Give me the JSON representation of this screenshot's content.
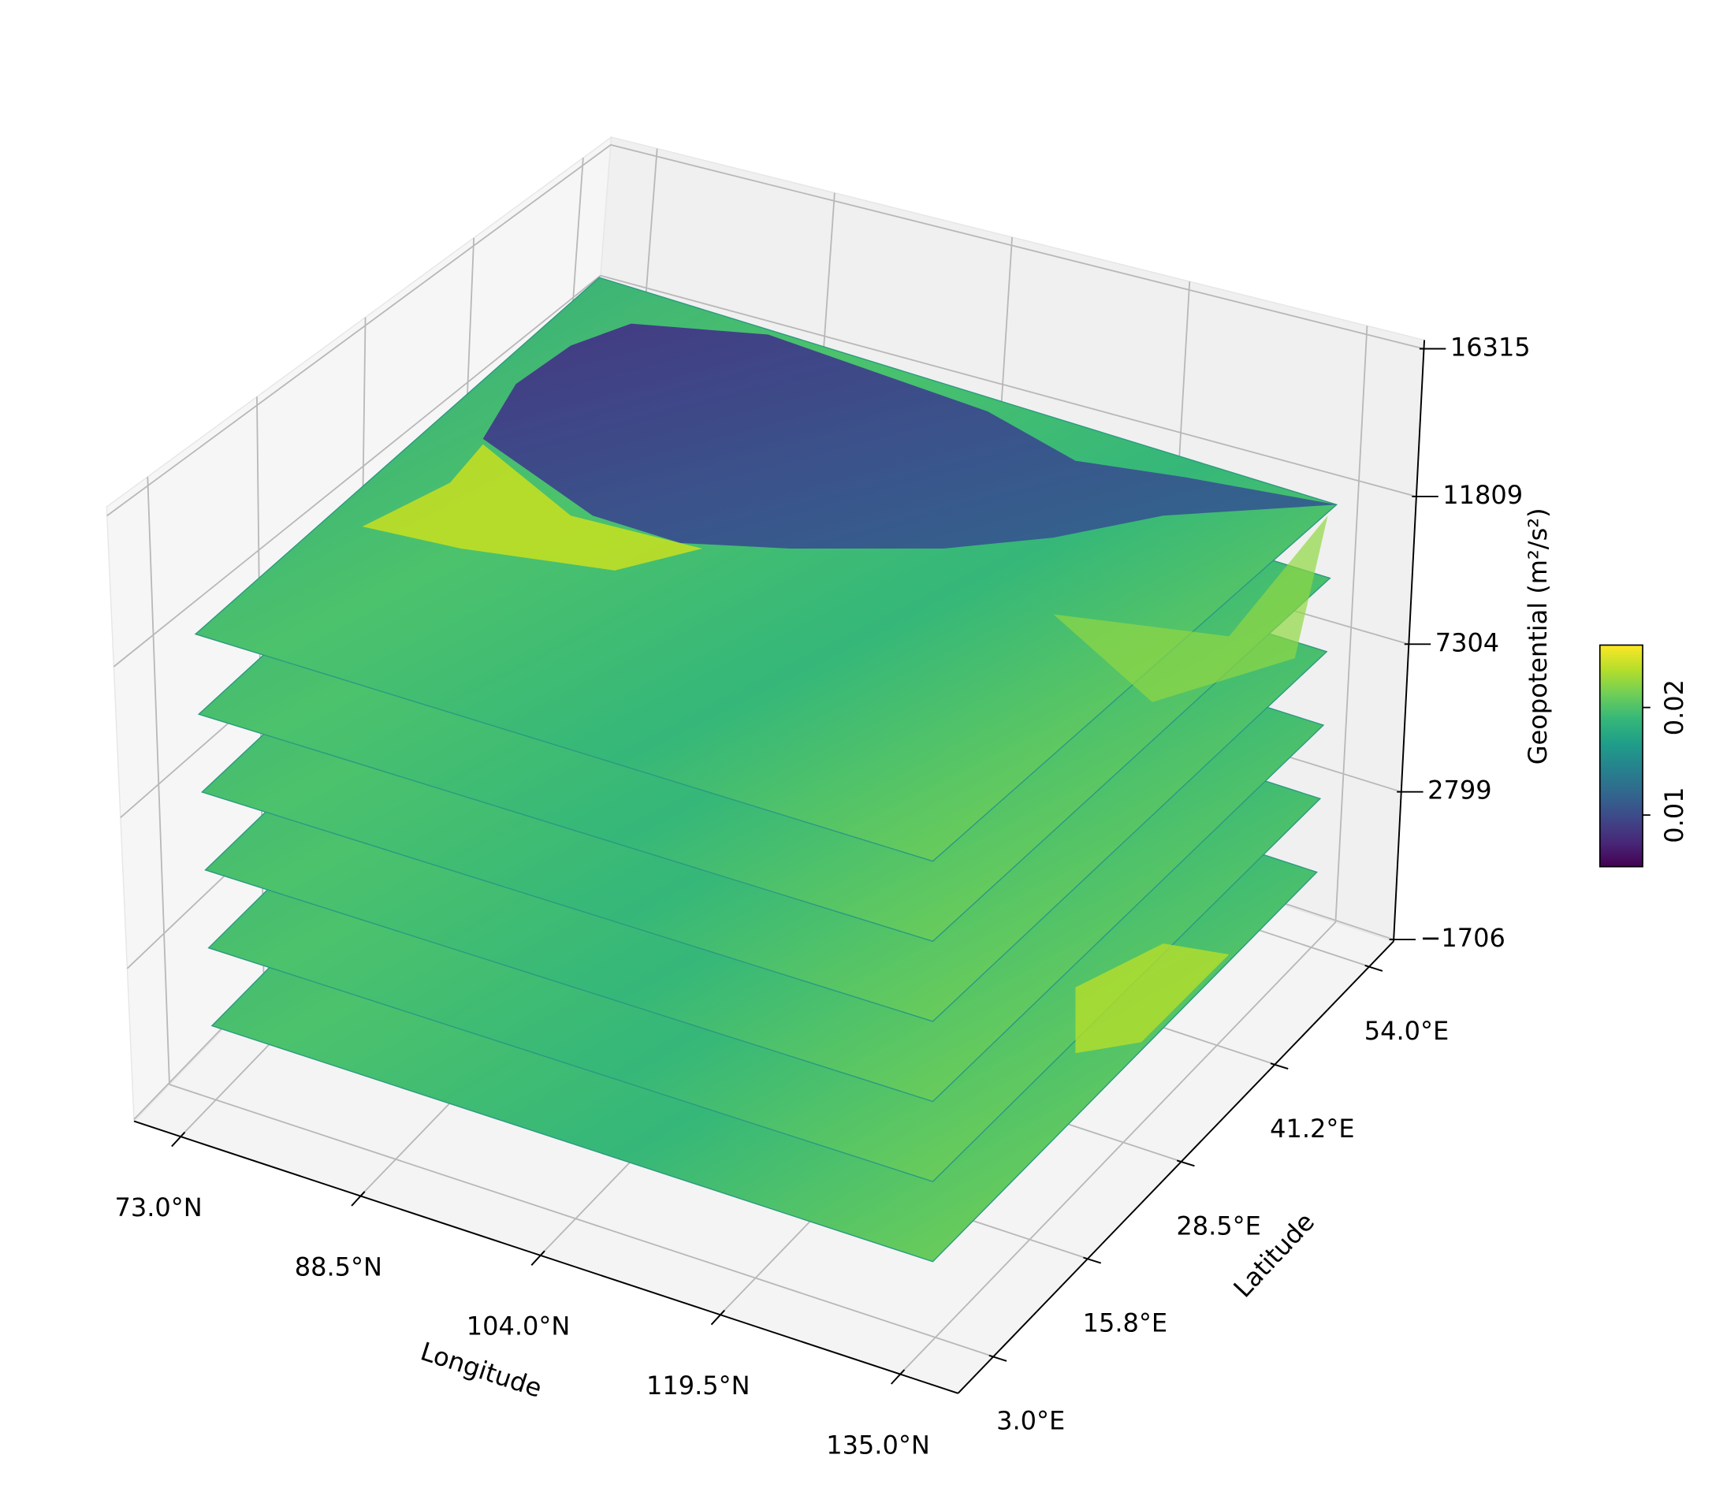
{
  "chart_data": {
    "type": "surface3d",
    "xlabel": "Longitude",
    "ylabel": "Latitude",
    "zlabel": "Geopotential (m²/s²)",
    "xlim": [
      69,
      140
    ],
    "xticks": [
      {
        "value": 73,
        "label": "73.0°N"
      },
      {
        "value": 88.5,
        "label": "88.5°N"
      },
      {
        "value": 104,
        "label": "104.0°N"
      },
      {
        "value": 119.5,
        "label": "119.5°N"
      },
      {
        "value": 135,
        "label": "135.0°N"
      }
    ],
    "ylim": [
      -1.8,
      57.3
    ],
    "yticks": [
      {
        "value": 3,
        "label": "3.0°E"
      },
      {
        "value": 15.8,
        "label": "15.8°E"
      },
      {
        "value": 28.5,
        "label": "28.5°E"
      },
      {
        "value": 41.2,
        "label": "41.2°E"
      },
      {
        "value": 54,
        "label": "54.0°E"
      }
    ],
    "zlim": [
      -1760,
      16580
    ],
    "zticks": [
      {
        "value": -1706,
        "label": "−1706"
      },
      2799,
      7304,
      11809,
      16315
    ],
    "grid": true,
    "colorbar": {
      "cmap": "viridis",
      "clim": [
        0.0052,
        0.0258
      ],
      "ticks": [
        0.01,
        0.02
      ]
    }
  }
}
